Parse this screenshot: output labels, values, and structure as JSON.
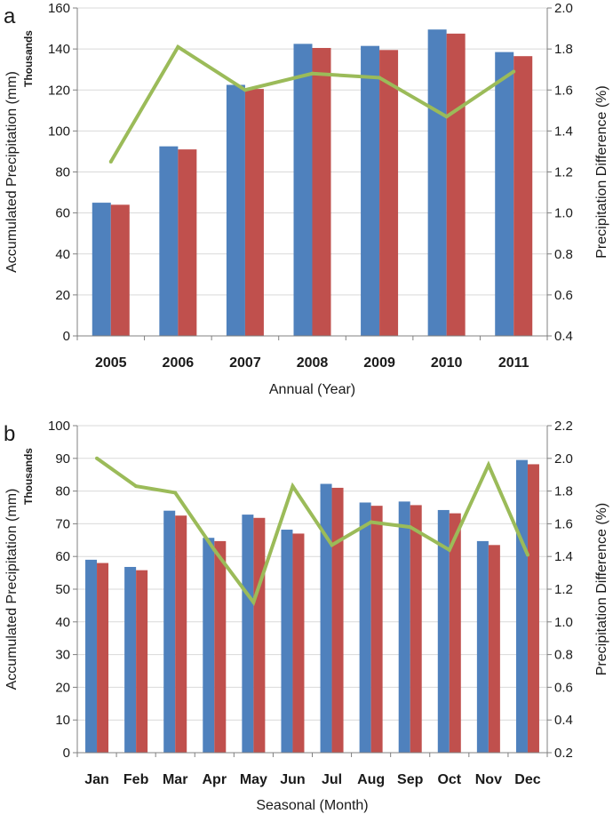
{
  "chart_data": [
    {
      "panel_label": "a",
      "type": "bar",
      "categories": [
        "2005",
        "2006",
        "2007",
        "2008",
        "2009",
        "2010",
        "2011"
      ],
      "series": [
        {
          "values": [
            65,
            92.5,
            122.5,
            142.5,
            141.5,
            149.5,
            138.5
          ],
          "color": "#4f81bd"
        },
        {
          "values": [
            64,
            91,
            120.5,
            140.5,
            139.5,
            147.5,
            136.5
          ],
          "color": "#c0504d"
        },
        {
          "values": [
            1.25,
            1.81,
            1.6,
            1.68,
            1.66,
            1.47,
            1.69
          ],
          "color": "#9bbb59",
          "kind": "line",
          "axis": "right"
        }
      ],
      "xlabel": "Annual (Year)",
      "ylabel": "Accumulated Precipitation (mm)",
      "ylabel_units": "Thousands",
      "y2label": "Precipitation Difference (%)",
      "ylim": [
        0,
        160
      ],
      "yticks": [
        "0",
        "20",
        "40",
        "60",
        "80",
        "100",
        "120",
        "140",
        "160"
      ],
      "y2lim": [
        0.4,
        2.0
      ],
      "y2ticks": [
        "0.4",
        "0.6",
        "0.8",
        "1.0",
        "1.2",
        "1.4",
        "1.6",
        "1.8",
        "2.0"
      ],
      "grid": true
    },
    {
      "panel_label": "b",
      "type": "bar",
      "categories": [
        "Jan",
        "Feb",
        "Mar",
        "Apr",
        "May",
        "Jun",
        "Jul",
        "Aug",
        "Sep",
        "Oct",
        "Nov",
        "Dec"
      ],
      "series": [
        {
          "values": [
            59,
            56.8,
            74,
            65.7,
            72.8,
            68.2,
            82.2,
            76.5,
            76.8,
            74.2,
            64.7,
            89.5
          ],
          "color": "#4f81bd"
        },
        {
          "values": [
            58,
            55.8,
            72.5,
            64.7,
            71.8,
            67,
            81,
            75.5,
            75.7,
            73.2,
            63.5,
            88.2
          ],
          "color": "#c0504d"
        },
        {
          "values": [
            2.0,
            1.83,
            1.79,
            1.44,
            1.12,
            1.83,
            1.47,
            1.61,
            1.58,
            1.44,
            1.96,
            1.41
          ],
          "color": "#9bbb59",
          "kind": "line",
          "axis": "right"
        }
      ],
      "xlabel": "Seasonal (Month)",
      "ylabel": "Accumulated Precipitation (mm)",
      "ylabel_units": "Thousands",
      "y2label": "Precipitation Difference (%)",
      "ylim": [
        0,
        100
      ],
      "yticks": [
        "0",
        "10",
        "20",
        "30",
        "40",
        "50",
        "60",
        "70",
        "80",
        "90",
        "100"
      ],
      "y2lim": [
        0.2,
        2.2
      ],
      "y2ticks": [
        "0.2",
        "0.4",
        "0.6",
        "0.8",
        "1.0",
        "1.2",
        "1.4",
        "1.6",
        "1.8",
        "2.0",
        "2.2"
      ],
      "grid": true
    }
  ]
}
